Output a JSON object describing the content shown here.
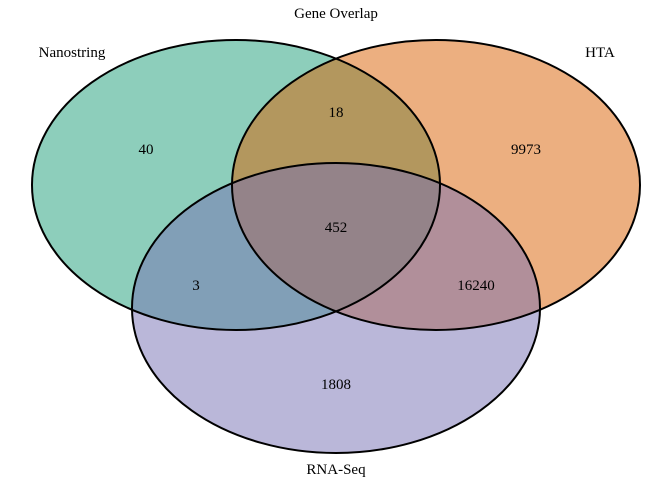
{
  "title": "Gene Overlap",
  "sets": [
    {
      "name": "Nanostring",
      "color": "#1B9E77"
    },
    {
      "name": "HTA",
      "color": "#D95F02"
    },
    {
      "name": "RNA-Seq",
      "color": "#7570B3"
    }
  ],
  "regions": {
    "nanostring_only": "40",
    "hta_only": "9973",
    "rnaseq_only": "1808",
    "nanostring_hta": "18",
    "nanostring_rnaseq": "3",
    "hta_rnaseq": "16240",
    "all_three": "452"
  }
}
